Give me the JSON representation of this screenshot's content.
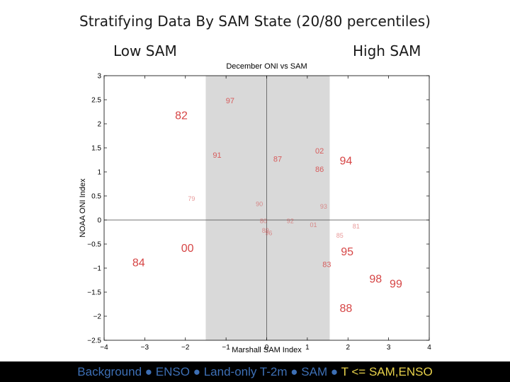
{
  "slide": {
    "title": "Stratifying Data By SAM State (20/80 percentiles)",
    "low_label": "Low SAM",
    "high_label": "High SAM"
  },
  "footer": {
    "items": [
      "Background",
      "ENSO",
      "Land-only T-2m",
      "SAM",
      "T <= SAM,ENSO"
    ],
    "separator": "●",
    "colors": {
      "text": "#3d6fb5",
      "highlight": "#e7d14a"
    }
  },
  "chart_data": {
    "type": "scatter",
    "title": "December ONI vs SAM",
    "xlabel": "Marshall SAM Index",
    "ylabel": "NOAA ONI Index",
    "xlim": [
      -4,
      4
    ],
    "ylim": [
      -2.5,
      3
    ],
    "xticks": [
      -4,
      -3,
      -2,
      -1,
      0,
      1,
      2,
      3,
      4
    ],
    "yticks": [
      -2.5,
      -2,
      -1.5,
      -1,
      -0.5,
      0,
      0.5,
      1,
      1.5,
      2,
      2.5,
      3
    ],
    "shaded_region": {
      "x": [
        -1.5,
        1.55
      ],
      "color": "#d9d9d9"
    },
    "point_color": "#d64545",
    "points": [
      {
        "label": "97",
        "x": -0.9,
        "y": 2.48,
        "emphasis": "small"
      },
      {
        "label": "82",
        "x": -2.1,
        "y": 2.18,
        "emphasis": "large"
      },
      {
        "label": "91",
        "x": -1.22,
        "y": 1.35,
        "emphasis": "small"
      },
      {
        "label": "87",
        "x": 0.27,
        "y": 1.27,
        "emphasis": "small"
      },
      {
        "label": "02",
        "x": 1.3,
        "y": 1.44,
        "emphasis": "small"
      },
      {
        "label": "94",
        "x": 1.95,
        "y": 1.24,
        "emphasis": "large"
      },
      {
        "label": "86",
        "x": 1.3,
        "y": 1.06,
        "emphasis": "small"
      },
      {
        "label": "79",
        "x": -1.85,
        "y": 0.44,
        "emphasis": "faint"
      },
      {
        "label": "90",
        "x": -0.18,
        "y": 0.33,
        "emphasis": "faint"
      },
      {
        "label": "93",
        "x": 1.4,
        "y": 0.28,
        "emphasis": "faint"
      },
      {
        "label": "80",
        "x": -0.08,
        "y": -0.02,
        "emphasis": "faint"
      },
      {
        "label": "92",
        "x": 0.58,
        "y": -0.02,
        "emphasis": "faint"
      },
      {
        "label": "01",
        "x": 1.15,
        "y": -0.1,
        "emphasis": "faint"
      },
      {
        "label": "81",
        "x": 2.2,
        "y": -0.13,
        "emphasis": "faint"
      },
      {
        "label": "89",
        "x": -0.03,
        "y": -0.22,
        "emphasis": "faint"
      },
      {
        "label": "96",
        "x": 0.05,
        "y": -0.27,
        "emphasis": "faint"
      },
      {
        "label": "85",
        "x": 1.8,
        "y": -0.32,
        "emphasis": "faint"
      },
      {
        "label": "00",
        "x": -1.95,
        "y": -0.58,
        "emphasis": "large"
      },
      {
        "label": "95",
        "x": 1.98,
        "y": -0.65,
        "emphasis": "large"
      },
      {
        "label": "84",
        "x": -3.15,
        "y": -0.88,
        "emphasis": "large"
      },
      {
        "label": "83",
        "x": 1.48,
        "y": -0.92,
        "emphasis": "small"
      },
      {
        "label": "98",
        "x": 2.68,
        "y": -1.22,
        "emphasis": "large"
      },
      {
        "label": "99",
        "x": 3.18,
        "y": -1.32,
        "emphasis": "large"
      },
      {
        "label": "88",
        "x": 1.95,
        "y": -1.83,
        "emphasis": "large"
      }
    ]
  }
}
